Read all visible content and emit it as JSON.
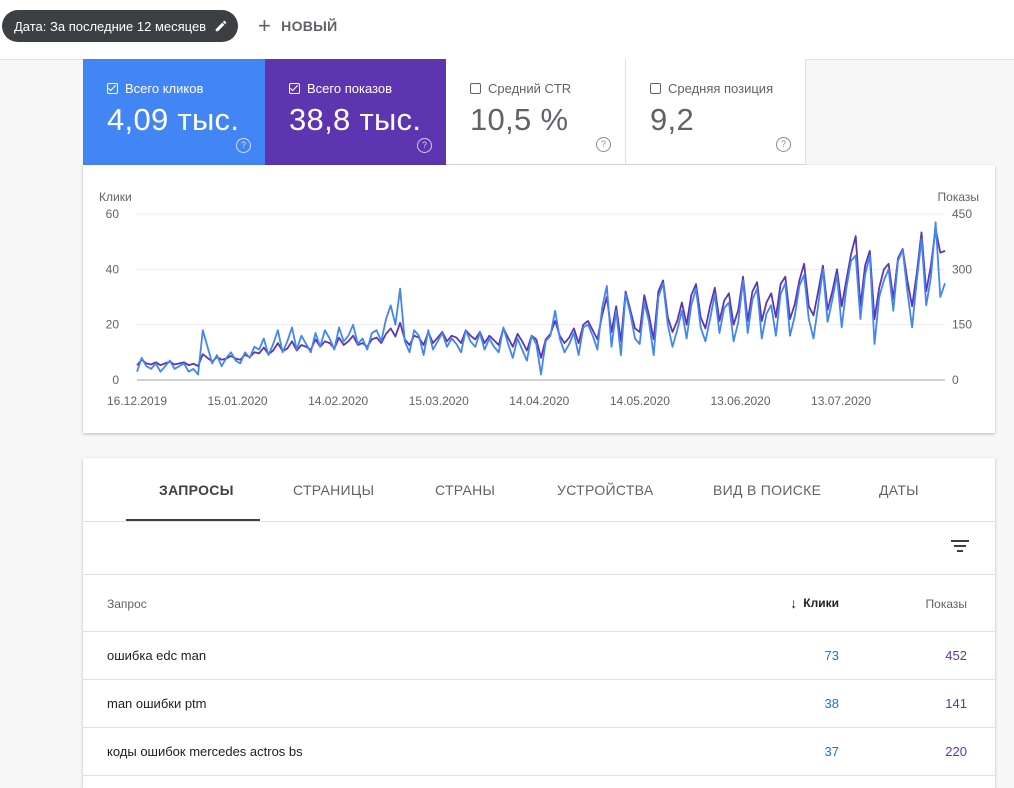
{
  "topbar": {
    "date_chip": "Дата: За последние 12 месяцев",
    "new_label": "НОВЫЙ"
  },
  "metrics": [
    {
      "label": "Всего кликов",
      "value": "4,09 тыс.",
      "checked": true
    },
    {
      "label": "Всего показов",
      "value": "38,8 тыс.",
      "checked": true
    },
    {
      "label": "Средний CTR",
      "value": "10,5 %",
      "checked": false
    },
    {
      "label": "Средняя позиция",
      "value": "9,2",
      "checked": false
    }
  ],
  "colors": {
    "clicks": "#4285f4",
    "impressions": "#5e35b1"
  },
  "chart_data": {
    "type": "line",
    "ylabel_left": "Клики",
    "ylabel_right": "Показы",
    "y_left_ticks": [
      "0",
      "20",
      "40",
      "60"
    ],
    "y_right_ticks": [
      "0",
      "150",
      "300",
      "450"
    ],
    "ylim_left": [
      0,
      60
    ],
    "ylim_right": [
      0,
      450
    ],
    "x_ticks": [
      "16.12.2019",
      "15.01.2020",
      "14.02.2020",
      "15.03.2020",
      "14.04.2020",
      "14.05.2020",
      "13.06.2020",
      "13.07.2020"
    ],
    "x_start": "2019-12-16",
    "x_end": "2020-08-13",
    "series": [
      {
        "name": "Клики",
        "axis": "left",
        "color": "#4285f4",
        "values": [
          3,
          8,
          5,
          4,
          6,
          3,
          5,
          7,
          4,
          5,
          6,
          3,
          4,
          2,
          18,
          12,
          6,
          9,
          5,
          8,
          10,
          7,
          6,
          10,
          8,
          12,
          11,
          15,
          9,
          13,
          18,
          10,
          14,
          19,
          11,
          16,
          13,
          10,
          17,
          12,
          18,
          15,
          11,
          19,
          14,
          16,
          20,
          13,
          15,
          11,
          17,
          18,
          14,
          22,
          27,
          20,
          33,
          14,
          10,
          18,
          16,
          9,
          18,
          11,
          14,
          17,
          12,
          15,
          13,
          10,
          18,
          14,
          12,
          17,
          11,
          15,
          12,
          10,
          19,
          13,
          8,
          15,
          11,
          7,
          16,
          13,
          2,
          14,
          16,
          25,
          15,
          10,
          13,
          17,
          9,
          19,
          20,
          16,
          11,
          26,
          34,
          12,
          25,
          9,
          31,
          24,
          15,
          13,
          28,
          21,
          9,
          30,
          35,
          20,
          12,
          18,
          25,
          15,
          27,
          33,
          19,
          14,
          22,
          31,
          17,
          26,
          28,
          14,
          21,
          36,
          17,
          29,
          33,
          15,
          24,
          27,
          16,
          31,
          35,
          16,
          23,
          34,
          38,
          22,
          15,
          27,
          40,
          21,
          29,
          38,
          19,
          33,
          43,
          45,
          22,
          38,
          45,
          13,
          30,
          36,
          40,
          25,
          43,
          47,
          32,
          19,
          36,
          51,
          27,
          37,
          57,
          30,
          35
        ],
        "note_last_index_peak": "57"
      },
      {
        "name": "Показы",
        "axis": "right",
        "color": "#5e35b1",
        "values": [
          40,
          55,
          45,
          42,
          48,
          40,
          45,
          50,
          42,
          45,
          48,
          40,
          44,
          38,
          70,
          60,
          50,
          62,
          55,
          58,
          65,
          58,
          55,
          68,
          62,
          75,
          72,
          88,
          70,
          80,
          100,
          78,
          85,
          105,
          80,
          95,
          90,
          82,
          110,
          90,
          105,
          100,
          85,
          115,
          95,
          105,
          120,
          95,
          100,
          90,
          110,
          115,
          100,
          125,
          140,
          118,
          155,
          110,
          95,
          120,
          115,
          95,
          130,
          100,
          115,
          130,
          105,
          120,
          115,
          100,
          135,
          120,
          110,
          130,
          100,
          120,
          108,
          95,
          140,
          115,
          90,
          125,
          105,
          80,
          120,
          110,
          60,
          110,
          125,
          160,
          120,
          100,
          115,
          140,
          100,
          150,
          160,
          135,
          110,
          175,
          225,
          130,
          200,
          105,
          240,
          190,
          140,
          130,
          230,
          175,
          110,
          240,
          270,
          170,
          130,
          160,
          210,
          150,
          230,
          260,
          170,
          140,
          200,
          250,
          160,
          215,
          235,
          150,
          190,
          280,
          160,
          240,
          265,
          160,
          210,
          235,
          170,
          260,
          280,
          165,
          205,
          270,
          315,
          200,
          175,
          240,
          310,
          190,
          240,
          300,
          200,
          270,
          340,
          390,
          200,
          310,
          350,
          165,
          250,
          300,
          315,
          220,
          330,
          355,
          270,
          200,
          290,
          400,
          240,
          310,
          410,
          345,
          350
        ]
      }
    ]
  },
  "tabs": [
    "ЗАПРОСЫ",
    "СТРАНИЦЫ",
    "СТРАНЫ",
    "УСТРОЙСТВА",
    "ВИД В ПОИСКЕ",
    "ДАТЫ"
  ],
  "table": {
    "headers": {
      "query": "Запрос",
      "clicks": "Клики",
      "impressions": "Показы"
    },
    "rows": [
      {
        "query": "ошибка edc man",
        "clicks": "73",
        "impressions": "452"
      },
      {
        "query": "man ошибки ptm",
        "clicks": "38",
        "impressions": "141"
      },
      {
        "query": "коды ошибок mercedes actros bs",
        "clicks": "37",
        "impressions": "220"
      }
    ]
  }
}
